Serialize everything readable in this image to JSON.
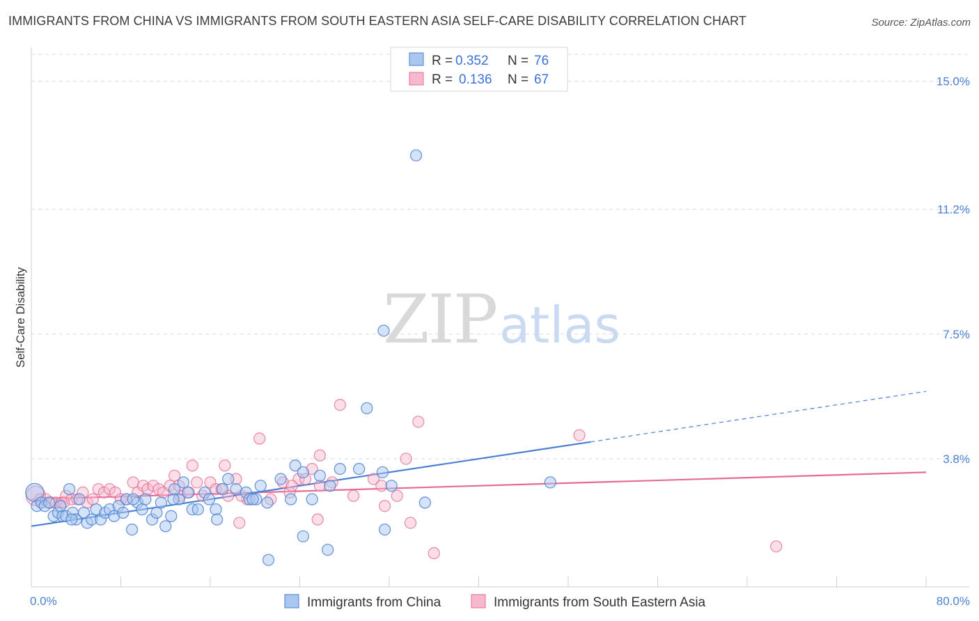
{
  "title": "IMMIGRANTS FROM CHINA VS IMMIGRANTS FROM SOUTH EASTERN ASIA SELF-CARE DISABILITY CORRELATION CHART",
  "source": "Source: ZipAtlas.com",
  "watermark": {
    "zip": "ZIP",
    "atlas": "atlas"
  },
  "colors": {
    "blue": "#4a7fd1",
    "blue_fill": "#a9c7ef",
    "pink": "#e56b96",
    "pink_fill": "#f5b8cc",
    "grid": "#d9d9d9"
  },
  "legend": {
    "r_label": "R =",
    "n_label": "N =",
    "series": [
      {
        "r": "0.352",
        "n": "76"
      },
      {
        "r": "0.136",
        "n": "67"
      }
    ]
  },
  "chart_data": {
    "type": "scatter",
    "title": "IMMIGRANTS FROM CHINA VS IMMIGRANTS FROM SOUTH EASTERN ASIA SELF-CARE DISABILITY CORRELATION CHART",
    "xlabel": "",
    "ylabel": "Self-Care Disability",
    "xlim": [
      0,
      80
    ],
    "ylim": [
      0,
      15.8
    ],
    "x_tick_labels": [
      "0.0%",
      "80.0%"
    ],
    "y_ticks": [
      3.8,
      7.5,
      11.2,
      15.0
    ],
    "y_tick_labels": [
      "3.8%",
      "7.5%",
      "11.2%",
      "15.0%"
    ],
    "grid": true,
    "series": [
      {
        "name": "Immigrants from China",
        "color": "#4a7fd1",
        "points": [
          [
            0.3,
            2.8
          ],
          [
            0.5,
            2.4
          ],
          [
            0.9,
            2.5
          ],
          [
            1.2,
            2.4
          ],
          [
            1.6,
            2.5
          ],
          [
            2.0,
            2.1
          ],
          [
            2.4,
            2.2
          ],
          [
            2.8,
            2.1
          ],
          [
            3.1,
            2.1
          ],
          [
            3.4,
            2.9
          ],
          [
            3.7,
            2.2
          ],
          [
            4.0,
            2.0
          ],
          [
            4.3,
            2.6
          ],
          [
            4.7,
            2.2
          ],
          [
            5.0,
            1.9
          ],
          [
            5.4,
            2.0
          ],
          [
            5.8,
            2.3
          ],
          [
            6.2,
            2.0
          ],
          [
            6.6,
            2.2
          ],
          [
            7.0,
            2.3
          ],
          [
            7.4,
            2.1
          ],
          [
            7.8,
            2.4
          ],
          [
            8.2,
            2.2
          ],
          [
            8.5,
            2.6
          ],
          [
            9.0,
            1.7
          ],
          [
            9.5,
            2.5
          ],
          [
            9.9,
            2.3
          ],
          [
            10.2,
            2.6
          ],
          [
            10.8,
            2.0
          ],
          [
            11.2,
            2.2
          ],
          [
            11.6,
            2.5
          ],
          [
            12.0,
            1.8
          ],
          [
            12.5,
            2.1
          ],
          [
            12.8,
            2.9
          ],
          [
            13.2,
            2.6
          ],
          [
            13.6,
            3.1
          ],
          [
            14.0,
            2.8
          ],
          [
            14.4,
            2.3
          ],
          [
            14.9,
            2.3
          ],
          [
            15.5,
            2.8
          ],
          [
            15.9,
            2.6
          ],
          [
            16.5,
            2.3
          ],
          [
            17.1,
            2.9
          ],
          [
            17.6,
            3.2
          ],
          [
            18.3,
            2.9
          ],
          [
            19.2,
            2.8
          ],
          [
            19.5,
            2.6
          ],
          [
            20.1,
            2.6
          ],
          [
            20.5,
            3.0
          ],
          [
            21.1,
            2.5
          ],
          [
            22.3,
            3.2
          ],
          [
            23.2,
            2.6
          ],
          [
            23.6,
            3.6
          ],
          [
            24.3,
            3.4
          ],
          [
            25.1,
            2.6
          ],
          [
            25.8,
            3.3
          ],
          [
            26.7,
            3.0
          ],
          [
            27.6,
            3.5
          ],
          [
            29.3,
            3.5
          ],
          [
            31.4,
            3.4
          ],
          [
            31.6,
            1.7
          ],
          [
            32.2,
            3.0
          ],
          [
            35.2,
            2.5
          ],
          [
            46.4,
            3.1
          ],
          [
            34.4,
            12.8
          ],
          [
            31.5,
            7.6
          ],
          [
            30.0,
            5.3
          ],
          [
            26.5,
            1.1
          ],
          [
            24.3,
            1.5
          ],
          [
            21.2,
            0.8
          ],
          [
            3.6,
            2.0
          ],
          [
            2.6,
            2.4
          ],
          [
            9.1,
            2.6
          ],
          [
            12.7,
            2.6
          ],
          [
            16.6,
            2.0
          ],
          [
            19.8,
            2.6
          ]
        ]
      },
      {
        "name": "Immigrants from South Eastern Asia",
        "color": "#e56b96",
        "points": [
          [
            0.4,
            2.7
          ],
          [
            0.8,
            2.6
          ],
          [
            1.3,
            2.6
          ],
          [
            1.8,
            2.5
          ],
          [
            2.2,
            2.5
          ],
          [
            2.7,
            2.5
          ],
          [
            3.1,
            2.7
          ],
          [
            3.6,
            2.6
          ],
          [
            4.1,
            2.6
          ],
          [
            4.6,
            2.8
          ],
          [
            5.0,
            2.5
          ],
          [
            5.5,
            2.6
          ],
          [
            6.0,
            2.9
          ],
          [
            6.5,
            2.8
          ],
          [
            7.0,
            2.9
          ],
          [
            7.5,
            2.8
          ],
          [
            8.0,
            2.6
          ],
          [
            8.5,
            2.6
          ],
          [
            9.1,
            3.1
          ],
          [
            9.5,
            2.8
          ],
          [
            10.0,
            3.0
          ],
          [
            10.4,
            2.9
          ],
          [
            10.9,
            3.0
          ],
          [
            11.4,
            2.9
          ],
          [
            11.8,
            2.8
          ],
          [
            12.4,
            3.0
          ],
          [
            12.8,
            3.3
          ],
          [
            13.2,
            3.0
          ],
          [
            14.1,
            2.8
          ],
          [
            14.8,
            3.1
          ],
          [
            15.3,
            2.7
          ],
          [
            16.0,
            3.1
          ],
          [
            16.5,
            2.9
          ],
          [
            17.0,
            2.9
          ],
          [
            17.6,
            2.7
          ],
          [
            18.3,
            3.2
          ],
          [
            19.3,
            2.6
          ],
          [
            20.4,
            4.4
          ],
          [
            21.4,
            2.6
          ],
          [
            22.5,
            3.1
          ],
          [
            23.1,
            2.8
          ],
          [
            23.9,
            3.2
          ],
          [
            24.5,
            3.2
          ],
          [
            25.1,
            3.5
          ],
          [
            25.8,
            3.0
          ],
          [
            26.9,
            3.1
          ],
          [
            27.6,
            5.4
          ],
          [
            28.8,
            2.7
          ],
          [
            30.6,
            3.2
          ],
          [
            31.3,
            3.0
          ],
          [
            32.7,
            2.7
          ],
          [
            33.5,
            3.8
          ],
          [
            34.6,
            4.9
          ],
          [
            36.0,
            1.0
          ],
          [
            49.0,
            4.5
          ],
          [
            66.6,
            1.2
          ],
          [
            18.6,
            1.9
          ],
          [
            23.3,
            3.0
          ],
          [
            25.8,
            3.9
          ],
          [
            17.3,
            3.6
          ],
          [
            14.4,
            3.6
          ],
          [
            13.3,
            2.7
          ],
          [
            18.8,
            2.7
          ],
          [
            25.6,
            2.0
          ],
          [
            31.6,
            2.4
          ],
          [
            33.9,
            1.9
          ],
          [
            2.9,
            2.5
          ]
        ]
      }
    ],
    "trend_lines": [
      {
        "series": "Immigrants from China",
        "x_start": 0,
        "y_start": 1.8,
        "x_end": 50,
        "y_end": 4.3,
        "dashed_to_x": 80,
        "dashed_to_y": 5.8
      },
      {
        "series": "Immigrants from South Eastern Asia",
        "x_start": 0,
        "y_start": 2.6,
        "x_end": 80,
        "y_end": 3.4
      }
    ]
  },
  "bottom_legend": [
    "Immigrants from China",
    "Immigrants from South Eastern Asia"
  ]
}
